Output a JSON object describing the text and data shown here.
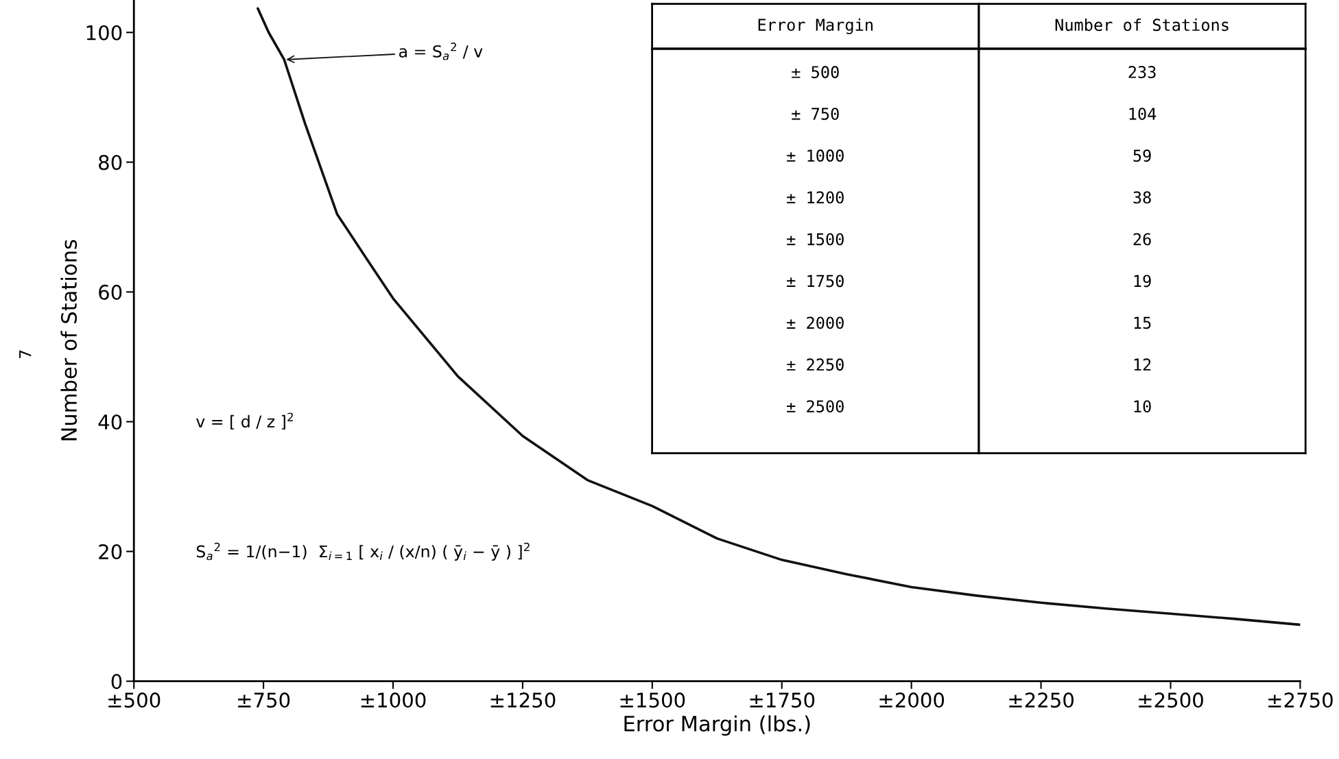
{
  "chart_data": [
    {
      "type": "line",
      "xlabel": "Error Margin (lbs.)",
      "ylabel": "Number of Stations",
      "x": [
        739,
        760,
        790,
        830,
        892,
        950,
        1000,
        1125,
        1250,
        1375,
        1500,
        1625,
        1750,
        1875,
        2000,
        2125,
        2250,
        2375,
        2500,
        2625,
        2750
      ],
      "series": [
        {
          "color": "#111111",
          "values": [
            103.7,
            100,
            95.8,
            86,
            72,
            65,
            59,
            47,
            37.8,
            31,
            27,
            22,
            18.7,
            16.5,
            14.5,
            13.2,
            12.1,
            11.2,
            10.4,
            9.6,
            8.7
          ]
        }
      ],
      "xlim": [
        500,
        2750
      ],
      "xticks": [
        {
          "value": 500,
          "label": "±500"
        },
        {
          "value": 750,
          "label": "±750"
        },
        {
          "value": 1000,
          "label": "±1000"
        },
        {
          "value": 1250,
          "label": "±1250"
        },
        {
          "value": 1500,
          "label": "±1500"
        },
        {
          "value": 1750,
          "label": "±1750"
        },
        {
          "value": 2000,
          "label": "±2000"
        },
        {
          "value": 2250,
          "label": "±2250"
        },
        {
          "value": 2500,
          "label": "±2500"
        },
        {
          "value": 2750,
          "label": "±2750"
        }
      ],
      "ylim": [
        0,
        105
      ],
      "yticks": [
        0,
        20,
        40,
        60,
        80,
        100
      ],
      "grid": false,
      "legend": false,
      "marker": "none",
      "line_style": "solid",
      "annotations": [
        {
          "text": "a = S$_{a}$$^{2}$ / v",
          "x": 790,
          "y": 95.8
        },
        "v = [ d / z ]$^{2}$",
        "S$_{a}$$^{2}$ = 1/(n−1)  Σ$_{i=1}$ [ x$_{i}$ / (x/n) ( ȳ$_{i}$ − ȳ ) ]$^{2}$",
        "7"
      ]
    },
    {
      "type": "other",
      "xlabel": "Error Margin",
      "ylabel": "Number of Stations",
      "categories": [
        "± 500",
        "± 750",
        "± 1000",
        "± 1200",
        "± 1500",
        "± 1750",
        "± 2000",
        "± 2250",
        "± 2500"
      ],
      "values": [
        233,
        104,
        59,
        38,
        26,
        19,
        15,
        12,
        10
      ],
      "data_labels": true
    }
  ]
}
